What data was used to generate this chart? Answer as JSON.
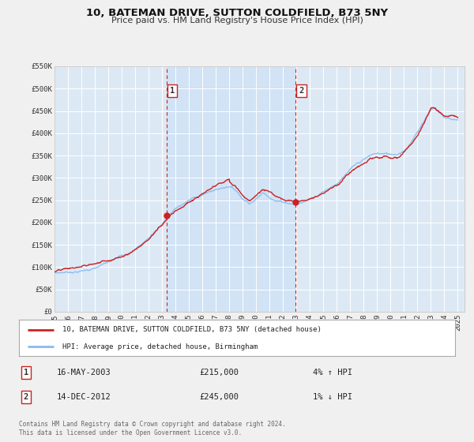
{
  "title": "10, BATEMAN DRIVE, SUTTON COLDFIELD, B73 5NY",
  "subtitle": "Price paid vs. HM Land Registry's House Price Index (HPI)",
  "background_color": "#f0f0f0",
  "plot_bg_color": "#dce9f5",
  "grid_color": "#ffffff",
  "hpi_color": "#88bbee",
  "price_color": "#cc2222",
  "ylim": [
    0,
    550000
  ],
  "yticks": [
    0,
    50000,
    100000,
    150000,
    200000,
    250000,
    300000,
    350000,
    400000,
    450000,
    500000,
    550000
  ],
  "ytick_labels": [
    "£0",
    "£50K",
    "£100K",
    "£150K",
    "£200K",
    "£250K",
    "£300K",
    "£350K",
    "£400K",
    "£450K",
    "£500K",
    "£550K"
  ],
  "xlim_start": 1995.0,
  "xlim_end": 2025.5,
  "xticks": [
    1995,
    1996,
    1997,
    1998,
    1999,
    2000,
    2001,
    2002,
    2003,
    2004,
    2005,
    2006,
    2007,
    2008,
    2009,
    2010,
    2011,
    2012,
    2013,
    2014,
    2015,
    2016,
    2017,
    2018,
    2019,
    2020,
    2021,
    2022,
    2023,
    2024,
    2025
  ],
  "sale1_x": 2003.37,
  "sale1_y": 215000,
  "sale2_x": 2012.95,
  "sale2_y": 245000,
  "legend_line1": "10, BATEMAN DRIVE, SUTTON COLDFIELD, B73 5NY (detached house)",
  "legend_line2": "HPI: Average price, detached house, Birmingham",
  "note1_num": "1",
  "note1_date": "16-MAY-2003",
  "note1_price": "£215,000",
  "note1_hpi": "4% ↑ HPI",
  "note2_num": "2",
  "note2_date": "14-DEC-2012",
  "note2_price": "£245,000",
  "note2_hpi": "1% ↓ HPI",
  "footer": "Contains HM Land Registry data © Crown copyright and database right 2024.\nThis data is licensed under the Open Government Licence v3.0."
}
